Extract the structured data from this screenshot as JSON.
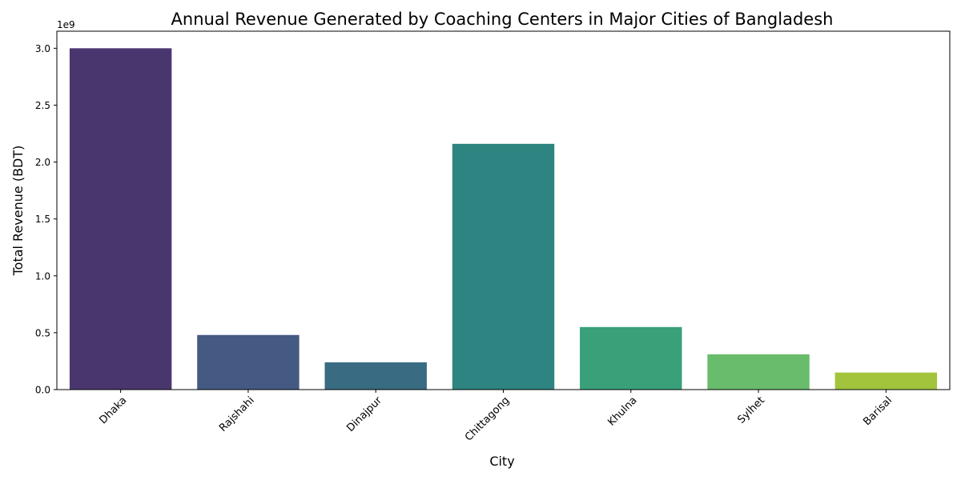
{
  "chart_data": {
    "type": "bar",
    "title": "Annual Revenue Generated by Coaching Centers in Major Cities of Bangladesh",
    "xlabel": "City",
    "ylabel": "Total Revenue (BDT)",
    "offset_label": "1e9",
    "categories": [
      "Dhaka",
      "Rajshahi",
      "Dinajpur",
      "Chittagong",
      "Khulna",
      "Sylhet",
      "Barisal"
    ],
    "values": [
      3000000000,
      480000000,
      240000000,
      2160000000,
      550000000,
      310000000,
      150000000
    ],
    "colors": [
      "#4a366f",
      "#455a82",
      "#396c82",
      "#2e8480",
      "#39a07a",
      "#68bc6b",
      "#a2c43c"
    ],
    "ylim": [
      0,
      3150000000
    ],
    "yticks": [
      0,
      500000000,
      1000000000,
      1500000000,
      2000000000,
      2500000000,
      3000000000
    ],
    "ytick_labels": [
      "0.0",
      "0.5",
      "1.0",
      "1.5",
      "2.0",
      "2.5",
      "3.0"
    ],
    "grid": false,
    "legend": "none"
  }
}
